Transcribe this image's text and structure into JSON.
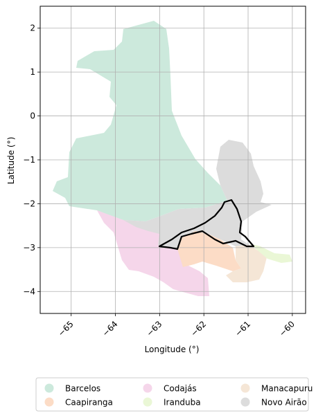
{
  "chart_data": {
    "type": "map",
    "xlabel": "Longitude (°)",
    "ylabel": "Latitude (°)",
    "xlim": [
      -65.7,
      -59.7
    ],
    "ylim": [
      -4.5,
      2.5
    ],
    "xticks": [
      -65,
      -64,
      -63,
      -62,
      -61,
      -60
    ],
    "xtick_labels": [
      "−65",
      "−64",
      "−63",
      "−62",
      "−61",
      "−60"
    ],
    "yticks": [
      2,
      1,
      0,
      -1,
      -2,
      -3,
      -4
    ],
    "ytick_labels": [
      "2",
      "1",
      "0",
      "−1",
      "−2",
      "−3",
      "−4"
    ],
    "grid": true,
    "legend_position": "bottom",
    "regions": [
      {
        "name": "Barcelos",
        "color": "#cce9dc"
      },
      {
        "name": "Caapiranga",
        "color": "#fcdcc6"
      },
      {
        "name": "Codajás",
        "color": "#f5d6ea"
      },
      {
        "name": "Iranduba",
        "color": "#eaf7d6"
      },
      {
        "name": "Manacapuru",
        "color": "#f5e6d6"
      },
      {
        "name": "Novo Airão",
        "color": "#dcdcdc"
      }
    ],
    "outline_color": "#000000"
  }
}
